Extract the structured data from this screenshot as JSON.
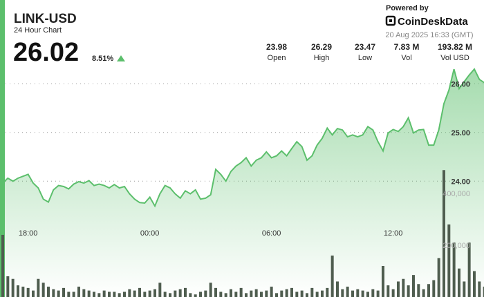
{
  "header": {
    "title": "LINK-USD",
    "subtitle": "24 Hour Chart",
    "price": "26.02",
    "change": "8.51%",
    "powered_by": "Powered by",
    "brand": "CoinDeskData",
    "timestamp": "20 Aug 2025 16:33 (GMT)",
    "stats": [
      {
        "value": "23.98",
        "label": "Open"
      },
      {
        "value": "26.29",
        "label": "High"
      },
      {
        "value": "23.47",
        "label": "Low"
      },
      {
        "value": "7.83 M",
        "label": "Vol"
      },
      {
        "value": "193.82 M",
        "label": "Vol USD"
      }
    ]
  },
  "chart_data": {
    "type": "line",
    "categories": [
      null,
      null,
      null,
      null,
      null,
      "18:00",
      null,
      null,
      null,
      null,
      null,
      null,
      null,
      null,
      null,
      null,
      null,
      null,
      null,
      null,
      null,
      null,
      null,
      null,
      null,
      null,
      null,
      null,
      null,
      "00:00",
      null,
      null,
      null,
      null,
      null,
      null,
      null,
      null,
      null,
      null,
      null,
      null,
      null,
      null,
      null,
      null,
      null,
      null,
      null,
      null,
      null,
      null,
      null,
      "06:00",
      null,
      null,
      null,
      null,
      null,
      null,
      null,
      null,
      null,
      null,
      null,
      null,
      null,
      null,
      null,
      null,
      null,
      null,
      null,
      null,
      null,
      null,
      null,
      "12:00",
      null,
      null,
      null,
      null,
      null,
      null,
      null,
      null,
      null,
      null,
      null,
      null,
      null,
      null,
      null,
      null,
      null,
      null
    ],
    "series": [
      {
        "color": "#5cbf6c",
        "values": [
          23.96,
          24.06,
          24.0,
          24.06,
          24.1,
          24.14,
          23.96,
          23.86,
          23.63,
          23.57,
          23.82,
          23.91,
          23.89,
          23.84,
          23.94,
          23.99,
          23.96,
          24.01,
          23.91,
          23.94,
          23.91,
          23.86,
          23.93,
          23.86,
          23.89,
          23.74,
          23.63,
          23.56,
          23.55,
          23.67,
          23.49,
          23.74,
          23.91,
          23.86,
          23.74,
          23.65,
          23.8,
          23.74,
          23.82,
          23.63,
          23.65,
          23.72,
          24.24,
          24.14,
          24.0,
          24.2,
          24.31,
          24.38,
          24.48,
          24.31,
          24.43,
          24.48,
          24.6,
          24.48,
          24.52,
          24.62,
          24.52,
          24.67,
          24.81,
          24.71,
          24.43,
          24.52,
          24.74,
          24.88,
          25.09,
          24.95,
          25.08,
          25.05,
          24.91,
          24.95,
          24.91,
          24.95,
          25.12,
          25.05,
          24.81,
          24.62,
          24.99,
          25.06,
          25.02,
          25.12,
          25.3,
          24.99,
          25.05,
          25.06,
          24.74,
          24.74,
          25.05,
          25.59,
          25.87,
          26.3,
          25.9,
          26.04,
          26.18,
          26.3,
          26.09,
          26.02
        ]
      },
      {
        "color": "#4f5d4f",
        "axis": "y2",
        "values": [
          240000,
          80000,
          70000,
          45000,
          40000,
          35000,
          25000,
          70000,
          55000,
          40000,
          30000,
          25000,
          35000,
          20000,
          20000,
          40000,
          30000,
          25000,
          20000,
          15000,
          25000,
          20000,
          20000,
          15000,
          20000,
          30000,
          25000,
          35000,
          20000,
          25000,
          30000,
          55000,
          20000,
          15000,
          25000,
          30000,
          35000,
          15000,
          10000,
          20000,
          25000,
          55000,
          35000,
          20000,
          15000,
          30000,
          20000,
          35000,
          15000,
          25000,
          30000,
          20000,
          25000,
          40000,
          15000,
          25000,
          30000,
          35000,
          20000,
          25000,
          15000,
          35000,
          20000,
          25000,
          35000,
          160000,
          60000,
          30000,
          40000,
          25000,
          30000,
          25000,
          20000,
          30000,
          25000,
          120000,
          45000,
          30000,
          60000,
          70000,
          45000,
          85000,
          50000,
          30000,
          50000,
          65000,
          150000,
          490000,
          280000,
          210000,
          110000,
          60000,
          210000,
          100000,
          60000,
          40000
        ]
      }
    ],
    "ylim": [
      22.5,
      26.5
    ],
    "yticks": [
      {
        "value": 24,
        "label": "24.00"
      },
      {
        "value": 25,
        "label": "25.00"
      },
      {
        "value": 26,
        "label": "26.00"
      }
    ],
    "y2lim": [
      0,
      560000
    ],
    "y2ticks": [
      {
        "value": 200000,
        "label": "200,000"
      },
      {
        "value": 400000,
        "label": "400,000"
      }
    ],
    "grid": true
  }
}
